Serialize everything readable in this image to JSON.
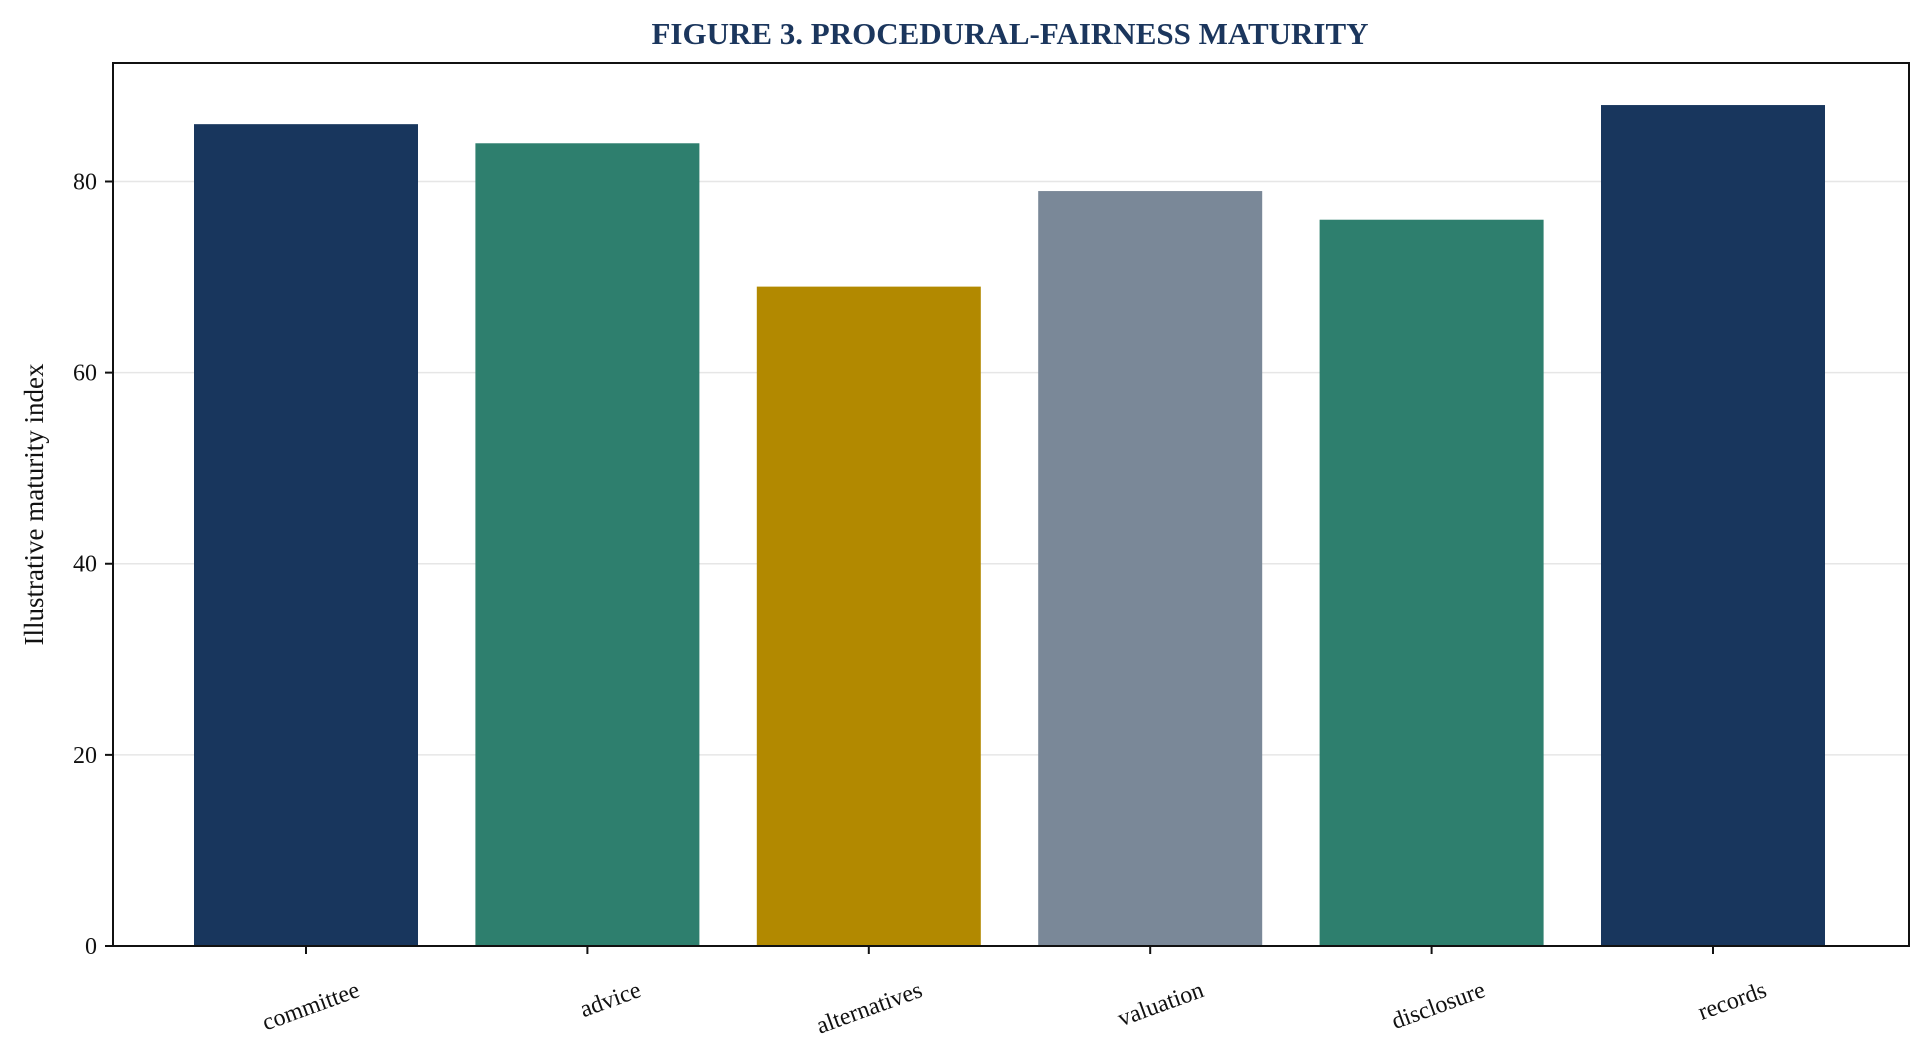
{
  "chart_data": {
    "type": "bar",
    "title": "FIGURE 3. PROCEDURAL-FAIRNESS MATURITY",
    "title_color": "#1b365d",
    "xlabel": "",
    "ylabel": "Illustrative maturity index",
    "categories": [
      "committee",
      "advice",
      "alternatives",
      "valuation",
      "disclosure",
      "records"
    ],
    "values": [
      86,
      84,
      69,
      79,
      76,
      88
    ],
    "bar_colors": [
      "#18365d",
      "#2e7f6e",
      "#b28900",
      "#7a8898",
      "#2e7f6e",
      "#18365d"
    ],
    "ylim": [
      0,
      92.4
    ],
    "yticks": [
      0,
      20,
      40,
      60,
      80
    ],
    "grid": true,
    "legend": "none"
  }
}
